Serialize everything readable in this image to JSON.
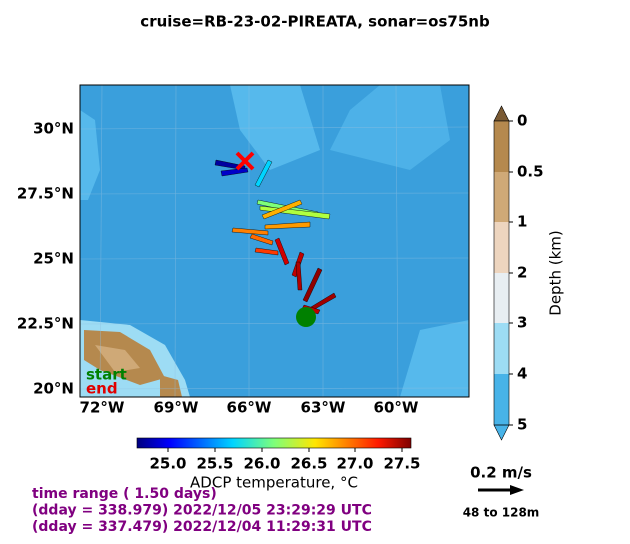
{
  "title": "cruise=RB-23-02-PIREATA,   sonar=os75nb",
  "map": {
    "lon_ticks": [
      "72°W",
      "69°W",
      "66°W",
      "63°W",
      "60°W"
    ],
    "lat_ticks": [
      "30°N",
      "27.5°N",
      "25°N",
      "22.5°N",
      "20°N"
    ],
    "start_label": "start",
    "end_label": "end"
  },
  "depth_colorbar": {
    "label": "Depth (km)",
    "ticks": [
      "0",
      "0.5",
      "1",
      "2",
      "3",
      "4",
      "5"
    ]
  },
  "temp_colorbar": {
    "label": "ADCP temperature, °C",
    "ticks": [
      "25.0",
      "25.5",
      "26.0",
      "26.5",
      "27.0",
      "27.5"
    ]
  },
  "scale": {
    "speed": "0.2 m/s",
    "depth_range": "48 to 128m"
  },
  "time_info": [
    "time range ( 1.50 days)",
    "(dday = 338.979) 2022/12/05 23:29:29 UTC",
    "(dday = 337.479) 2022/12/04 11:29:31 UTC"
  ]
}
